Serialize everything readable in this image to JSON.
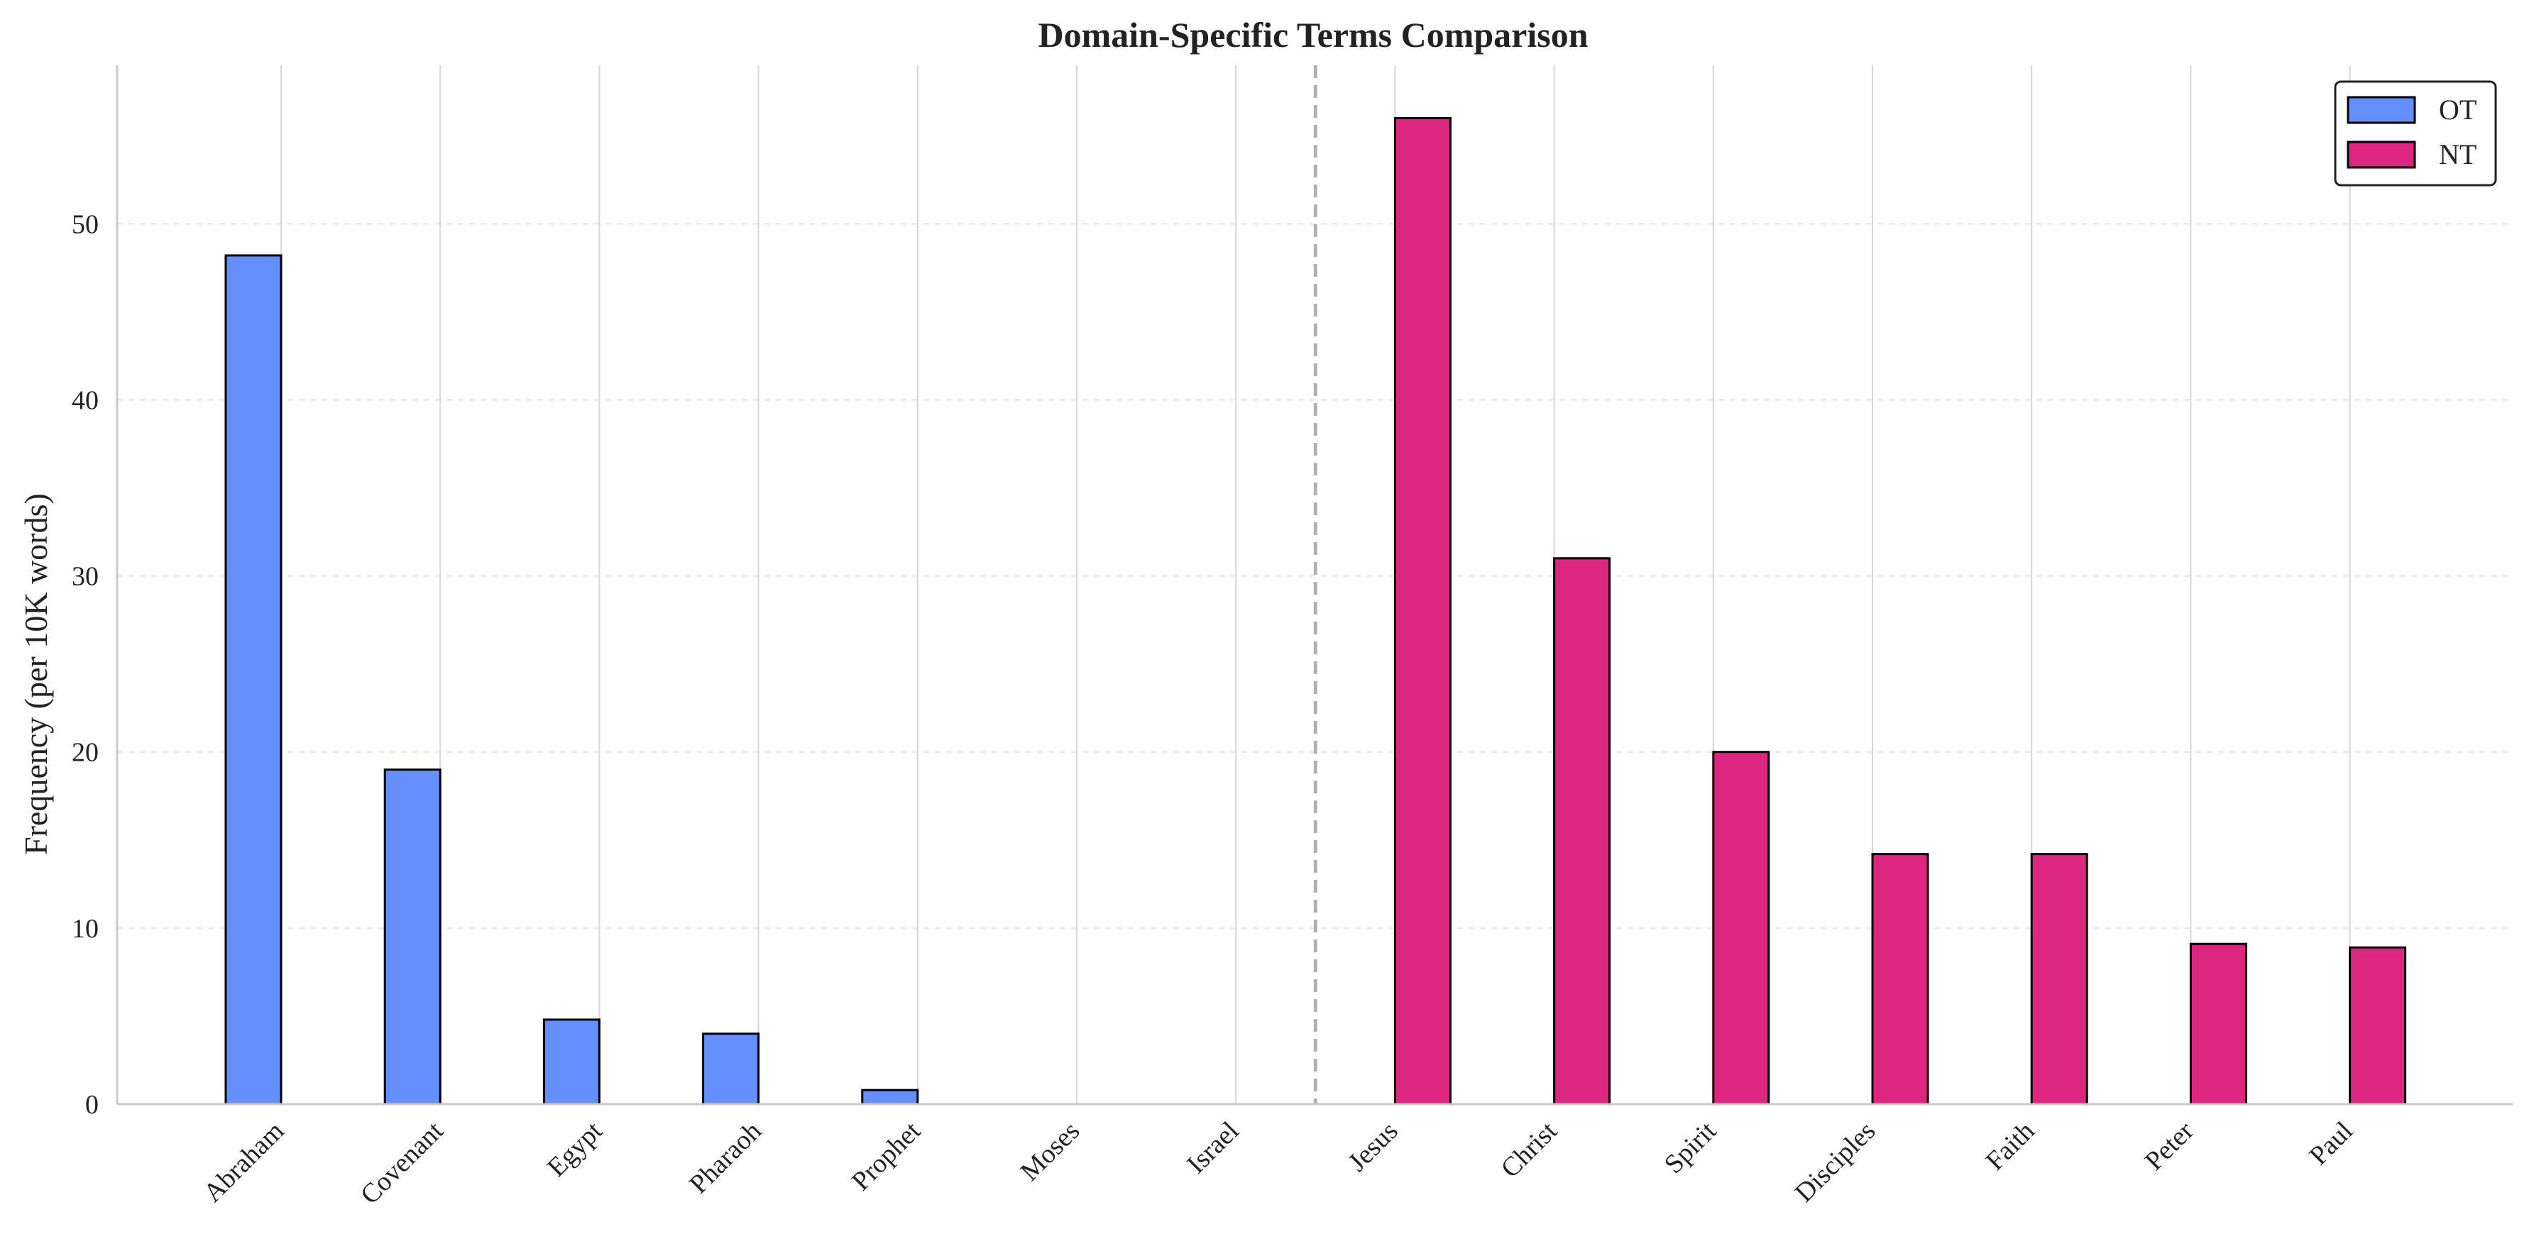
{
  "chart_data": {
    "type": "bar",
    "title": "Domain-Specific Terms Comparison",
    "xlabel": "",
    "ylabel": "Frequency (per 10K words)",
    "ylim": [
      0,
      59
    ],
    "yticks": [
      0,
      10,
      20,
      30,
      40,
      50
    ],
    "grid": true,
    "legend_position": "top-right",
    "categories": [
      "Abraham",
      "Covenant",
      "Egypt",
      "Pharaoh",
      "Prophet",
      "Moses",
      "Israel",
      "Jesus",
      "Christ",
      "Spirit",
      "Disciples",
      "Faith",
      "Peter",
      "Paul"
    ],
    "series": [
      {
        "name": "OT",
        "color": "#668ffe",
        "values": [
          48.2,
          19.0,
          4.8,
          4.0,
          0.8,
          0,
          0,
          null,
          null,
          null,
          null,
          null,
          null,
          null
        ]
      },
      {
        "name": "NT",
        "color": "#dc267f",
        "values": [
          null,
          null,
          null,
          null,
          null,
          null,
          null,
          56.0,
          31.0,
          20.0,
          14.2,
          14.2,
          9.1,
          8.9
        ]
      }
    ],
    "divider_after_category": "Israel"
  }
}
